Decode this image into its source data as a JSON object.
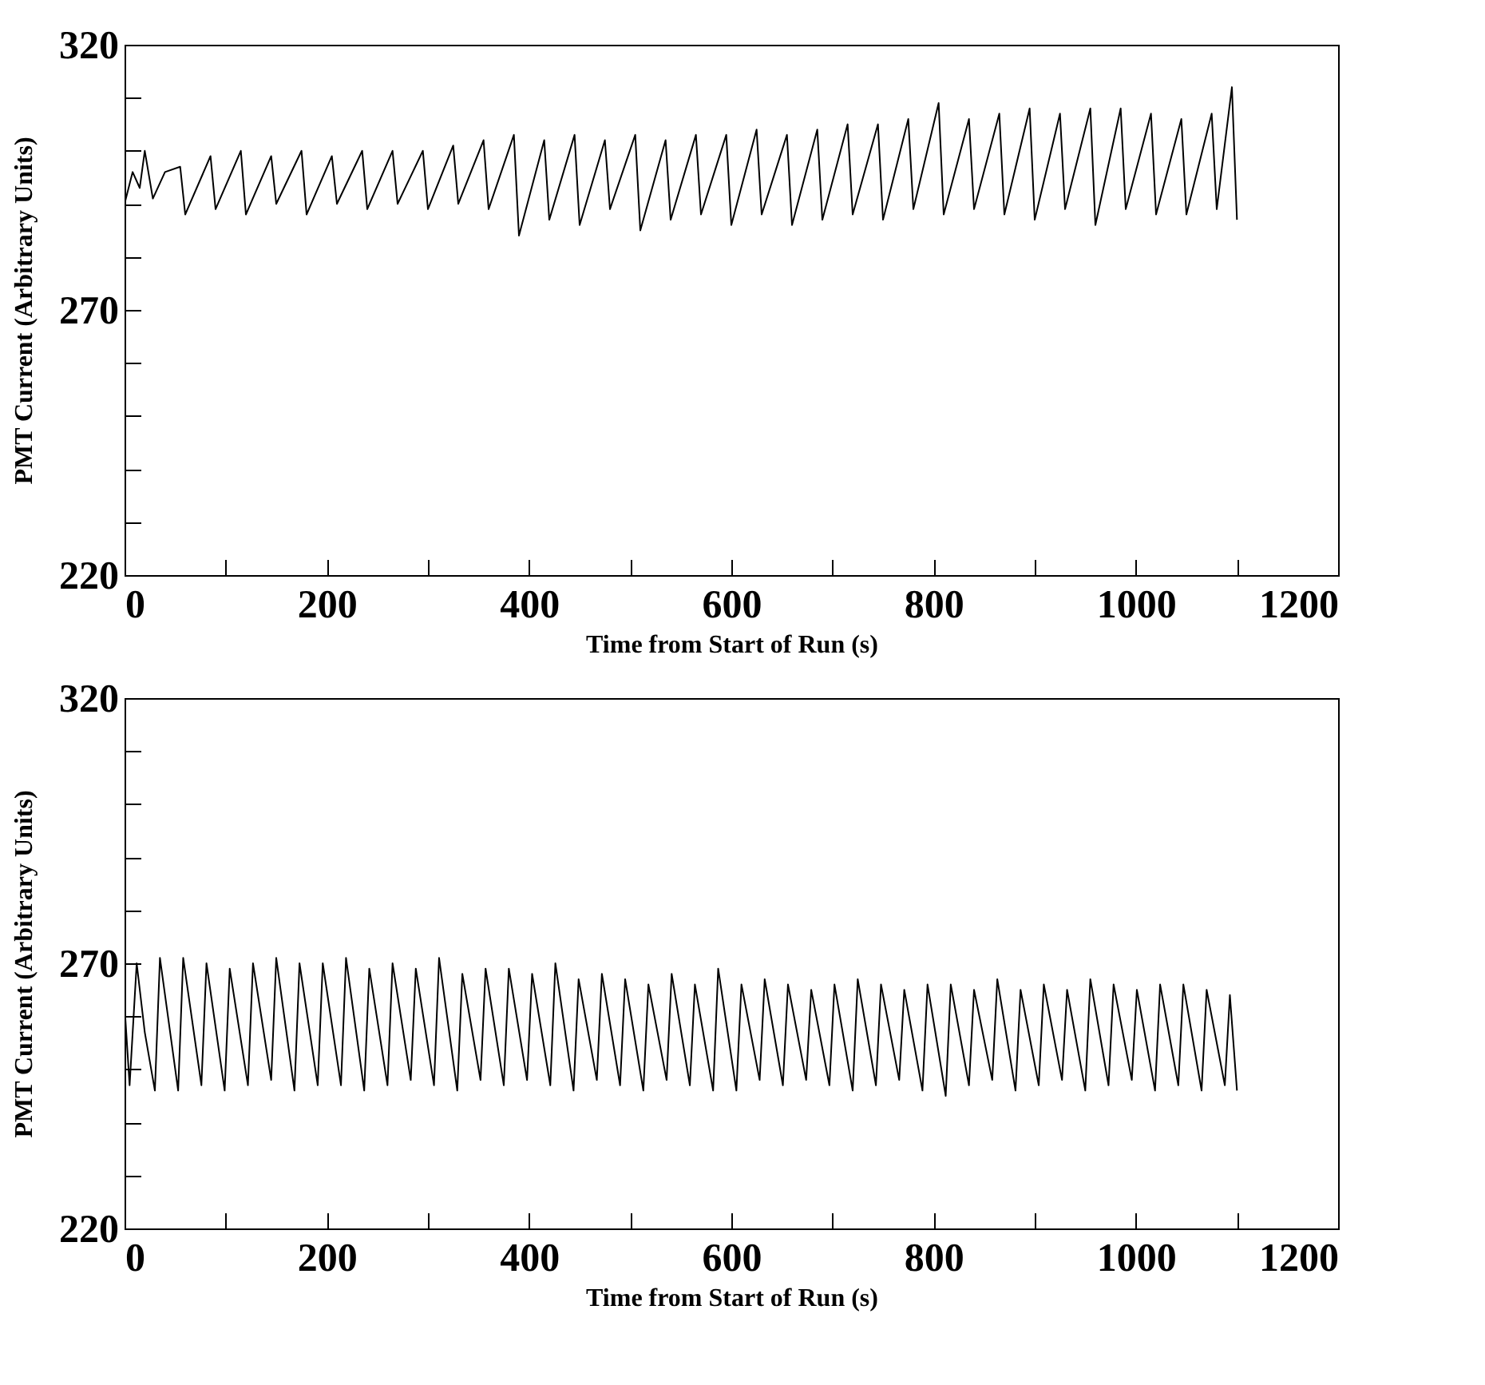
{
  "chart_data": [
    {
      "type": "line",
      "xlabel": "Time from Start of Run (s)",
      "ylabel": "PMT Current (Arbitrary Units)",
      "grid": false,
      "xlim": [
        0,
        1200
      ],
      "ylim": [
        220,
        320
      ],
      "xticks": [
        0,
        {
          "value": 100,
          "label": null
        },
        200,
        {
          "value": 300,
          "label": null
        },
        400,
        {
          "value": 500,
          "label": null
        },
        600,
        {
          "value": 700,
          "label": null
        },
        800,
        {
          "value": 900,
          "label": null
        },
        1000,
        {
          "value": 1100,
          "label": null
        },
        1200
      ],
      "yticks": [
        220,
        {
          "value": 230,
          "label": null
        },
        {
          "value": 240,
          "label": null
        },
        {
          "value": 250,
          "label": null
        },
        {
          "value": 260,
          "label": null
        },
        270,
        {
          "value": 280,
          "label": null
        },
        {
          "value": 290,
          "label": null
        },
        {
          "value": 300,
          "label": null
        },
        {
          "value": 310,
          "label": null
        },
        320
      ],
      "series": [
        {
          "color": "#000000",
          "x": [
            0,
            8,
            15,
            20,
            28,
            40,
            55,
            60,
            85,
            90,
            115,
            120,
            145,
            150,
            175,
            180,
            205,
            210,
            235,
            240,
            265,
            270,
            295,
            300,
            325,
            330,
            355,
            360,
            385,
            390,
            415,
            420,
            445,
            450,
            475,
            480,
            505,
            510,
            535,
            540,
            565,
            570,
            595,
            600,
            625,
            630,
            655,
            660,
            685,
            690,
            715,
            720,
            745,
            750,
            775,
            780,
            805,
            810,
            835,
            840,
            865,
            870,
            895,
            900,
            925,
            930,
            955,
            960,
            985,
            990,
            1015,
            1020,
            1045,
            1050,
            1075,
            1080,
            1095,
            1100
          ],
          "values": [
            290,
            296,
            293,
            300,
            291,
            296,
            297,
            288,
            299,
            289,
            300,
            288,
            299,
            290,
            300,
            288,
            299,
            290,
            300,
            289,
            300,
            290,
            300,
            289,
            301,
            290,
            302,
            289,
            303,
            284,
            302,
            287,
            303,
            286,
            302,
            289,
            303,
            285,
            302,
            287,
            303,
            288,
            303,
            286,
            304,
            288,
            303,
            286,
            304,
            287,
            305,
            288,
            305,
            287,
            306,
            289,
            309,
            288,
            306,
            289,
            307,
            288,
            308,
            287,
            307,
            289,
            308,
            286,
            308,
            289,
            307,
            288,
            306,
            288,
            307,
            289,
            312,
            287
          ]
        }
      ]
    },
    {
      "type": "line",
      "xlabel": "Time from Start of Run (s)",
      "ylabel": "PMT Current (Arbitrary Units)",
      "grid": false,
      "xlim": [
        0,
        1200
      ],
      "ylim": [
        220,
        320
      ],
      "xticks": [
        0,
        {
          "value": 100,
          "label": null
        },
        200,
        {
          "value": 300,
          "label": null
        },
        400,
        {
          "value": 500,
          "label": null
        },
        600,
        {
          "value": 700,
          "label": null
        },
        800,
        {
          "value": 900,
          "label": null
        },
        1000,
        {
          "value": 1100,
          "label": null
        },
        1200
      ],
      "yticks": [
        220,
        {
          "value": 230,
          "label": null
        },
        {
          "value": 240,
          "label": null
        },
        {
          "value": 250,
          "label": null
        },
        {
          "value": 260,
          "label": null
        },
        270,
        {
          "value": 280,
          "label": null
        },
        {
          "value": 290,
          "label": null
        },
        {
          "value": 300,
          "label": null
        },
        {
          "value": 310,
          "label": null
        },
        320
      ],
      "series": [
        {
          "color": "#000000",
          "x": [
            0,
            5,
            12,
            20,
            30,
            35,
            53,
            58,
            76,
            81,
            99,
            104,
            122,
            127,
            145,
            150,
            168,
            173,
            191,
            196,
            214,
            219,
            237,
            242,
            260,
            265,
            283,
            288,
            306,
            311,
            329,
            334,
            352,
            357,
            375,
            380,
            398,
            403,
            421,
            426,
            444,
            449,
            467,
            472,
            490,
            495,
            513,
            518,
            536,
            541,
            559,
            564,
            582,
            587,
            605,
            610,
            628,
            633,
            651,
            656,
            674,
            679,
            697,
            702,
            720,
            725,
            743,
            748,
            766,
            771,
            789,
            794,
            812,
            817,
            835,
            840,
            858,
            863,
            881,
            886,
            904,
            909,
            927,
            932,
            950,
            955,
            973,
            978,
            996,
            1001,
            1019,
            1024,
            1042,
            1047,
            1065,
            1070,
            1088,
            1093,
            1100
          ],
          "values": [
            262,
            247,
            270,
            257,
            246,
            271,
            246,
            271,
            247,
            270,
            246,
            269,
            247,
            270,
            248,
            271,
            246,
            270,
            247,
            270,
            247,
            271,
            246,
            269,
            247,
            270,
            248,
            269,
            247,
            271,
            246,
            268,
            248,
            269,
            247,
            269,
            248,
            268,
            247,
            270,
            246,
            267,
            248,
            268,
            247,
            267,
            246,
            266,
            248,
            268,
            247,
            266,
            246,
            269,
            246,
            266,
            248,
            267,
            247,
            266,
            248,
            265,
            247,
            266,
            246,
            267,
            247,
            266,
            248,
            265,
            246,
            266,
            245,
            266,
            247,
            265,
            248,
            267,
            246,
            265,
            247,
            266,
            248,
            265,
            246,
            267,
            247,
            266,
            248,
            265,
            246,
            266,
            247,
            266,
            246,
            265,
            247,
            264,
            246
          ]
        }
      ]
    }
  ]
}
